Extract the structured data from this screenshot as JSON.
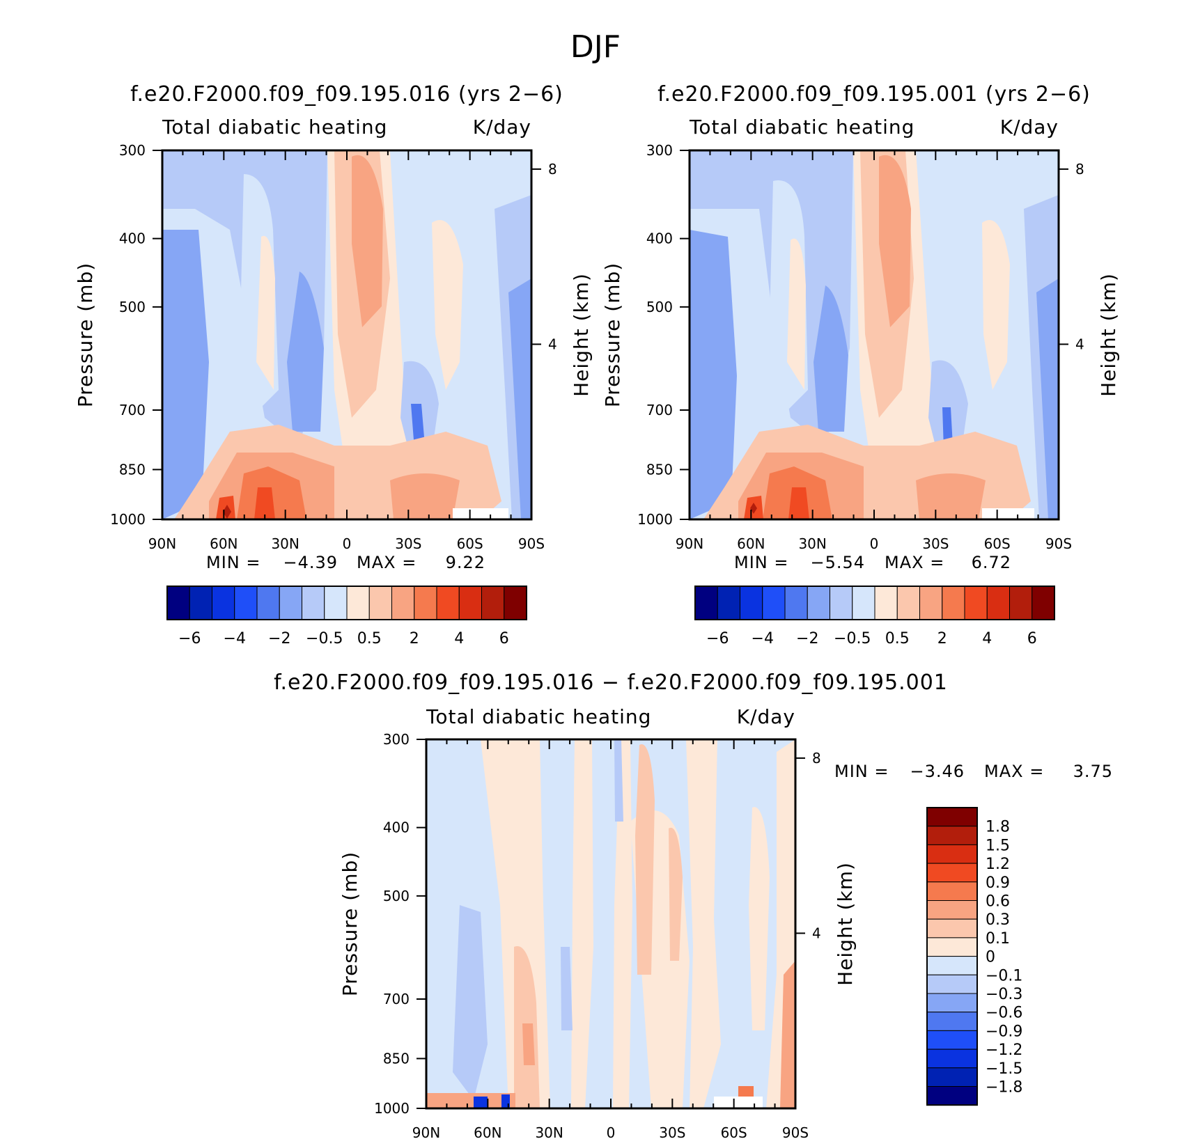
{
  "figure_title": "DJF",
  "chart_data": [
    {
      "type": "heatmap",
      "title": "f.e20.F2000.f09_f09.195.016 (yrs 2-6)",
      "subtitle_left": "Total diabatic heating",
      "subtitle_right": "K/day",
      "xlabel": "",
      "ylabel": "Pressure (mb)",
      "y2label": "Height (km)",
      "x_ticks": [
        "90N",
        "60N",
        "30N",
        "0",
        "30S",
        "60S",
        "90S"
      ],
      "y_ticks": [
        300,
        400,
        500,
        700,
        850,
        1000
      ],
      "y2_ticks": [
        8,
        4
      ],
      "ylim": [
        1000,
        300
      ],
      "y_scale": "log",
      "min": "-4.39",
      "max": "9.22",
      "colorbar_labels": [
        "-6",
        "-4",
        "-2",
        "-0.5",
        "0.5",
        "2",
        "4",
        "6"
      ],
      "colorbar_orientation": "horizontal"
    },
    {
      "type": "heatmap",
      "title": "f.e20.F2000.f09_f09.195.001 (yrs 2-6)",
      "subtitle_left": "Total diabatic heating",
      "subtitle_right": "K/day",
      "xlabel": "",
      "ylabel": "Pressure (mb)",
      "y2label": "Height (km)",
      "x_ticks": [
        "90N",
        "60N",
        "30N",
        "0",
        "30S",
        "60S",
        "90S"
      ],
      "y_ticks": [
        300,
        400,
        500,
        700,
        850,
        1000
      ],
      "y2_ticks": [
        8,
        4
      ],
      "ylim": [
        1000,
        300
      ],
      "y_scale": "log",
      "min": "-5.54",
      "max": "6.72",
      "colorbar_labels": [
        "-6",
        "-4",
        "-2",
        "-0.5",
        "0.5",
        "2",
        "4",
        "6"
      ],
      "colorbar_orientation": "horizontal"
    },
    {
      "type": "heatmap",
      "title": "f.e20.F2000.f09_f09.195.016 - f.e20.F2000.f09_f09.195.001",
      "subtitle_left": "Total diabatic heating",
      "subtitle_right": "K/day",
      "xlabel": "",
      "ylabel": "Pressure (mb)",
      "y2label": "Height (km)",
      "x_ticks": [
        "90N",
        "60N",
        "30N",
        "0",
        "30S",
        "60S",
        "90S"
      ],
      "y_ticks": [
        300,
        400,
        500,
        700,
        850,
        1000
      ],
      "y2_ticks": [
        8,
        4
      ],
      "ylim": [
        1000,
        300
      ],
      "y_scale": "log",
      "min": "-3.46",
      "max": "3.75",
      "colorbar_labels": [
        "1.8",
        "1.5",
        "1.2",
        "0.9",
        "0.6",
        "0.3",
        "0.1",
        "0",
        "-0.1",
        "-0.3",
        "-0.6",
        "-0.9",
        "-1.2",
        "-1.5",
        "-1.8"
      ],
      "colorbar_orientation": "vertical"
    }
  ],
  "colors": {
    "colormap": [
      "#000080",
      "#0022b3",
      "#0a33e0",
      "#1f4ff8",
      "#4f78f0",
      "#86a6f5",
      "#b6caf8",
      "#d6e6fb",
      "#fde8d8",
      "#fbc7ad",
      "#f8a482",
      "#f57a4e",
      "#f04a22",
      "#d92e12",
      "#b21e0c",
      "#7f0000"
    ],
    "frame": "#000000",
    "background": "#ffffff"
  },
  "labels": {
    "min_label": "MIN =",
    "max_label": "MAX ="
  }
}
